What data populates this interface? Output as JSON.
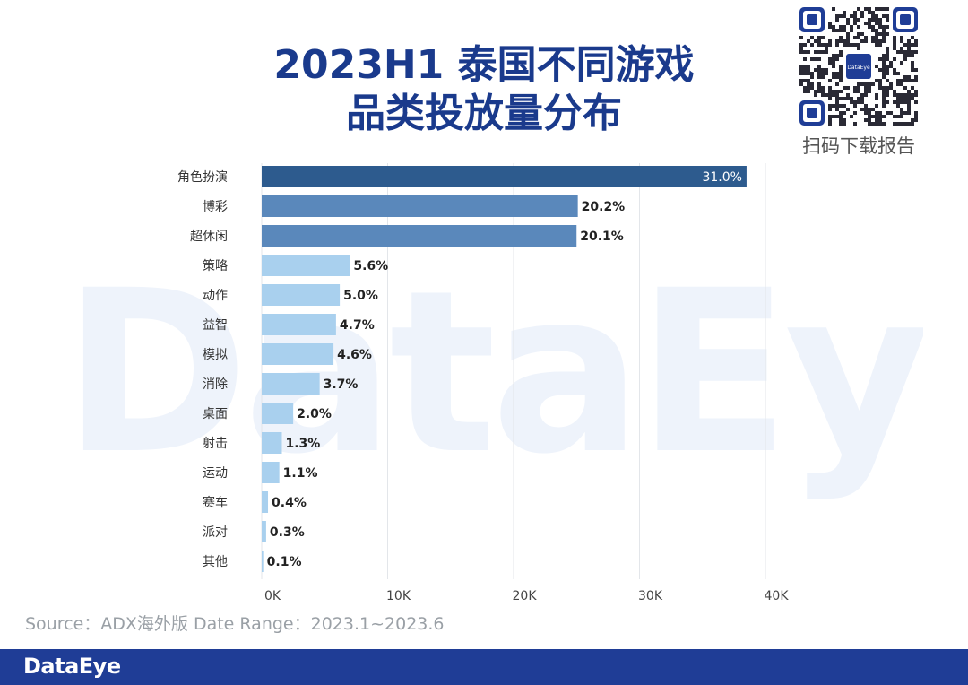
{
  "title": {
    "line1": "2023H1 泰国不同游戏",
    "line2": "品类投放量分布"
  },
  "watermark": "DataEye",
  "qr": {
    "caption": "扫码下载报告",
    "center_label": "DataEye"
  },
  "source": "Source：ADX海外版 Date Range：2023.1~2023.6",
  "footer": {
    "brand": "DataEye"
  },
  "colors": {
    "title": "#1a3a8c",
    "bar_dark": "#2d5b8e",
    "bar_mid": "#5a88bb",
    "bar_light": "#a9d0ee",
    "footer": "#1f3d96"
  },
  "chart_data": {
    "type": "bar",
    "orientation": "horizontal",
    "categories": [
      "角色扮演",
      "博彩",
      "超休闲",
      "策略",
      "动作",
      "益智",
      "模拟",
      "消除",
      "桌面",
      "射击",
      "运动",
      "赛车",
      "派对",
      "其他"
    ],
    "values": [
      38500,
      25100,
      25000,
      7000,
      6200,
      5900,
      5700,
      4600,
      2500,
      1600,
      1400,
      500,
      350,
      120
    ],
    "labels": [
      "31.0%",
      "20.2%",
      "20.1%",
      "5.6%",
      "5.0%",
      "4.7%",
      "4.6%",
      "3.7%",
      "2.0%",
      "1.3%",
      "1.1%",
      "0.4%",
      "0.3%",
      "0.1%"
    ],
    "tiers": [
      "dark",
      "mid",
      "mid",
      "light",
      "light",
      "light",
      "light",
      "light",
      "light",
      "light",
      "light",
      "light",
      "light",
      "light"
    ],
    "xlim": [
      0,
      40000
    ],
    "xticks": [
      0,
      10000,
      20000,
      30000,
      40000
    ],
    "xtick_labels": [
      "0K",
      "10K",
      "20K",
      "30K",
      "40K"
    ],
    "xlabel": "",
    "ylabel": "",
    "grid": true
  }
}
